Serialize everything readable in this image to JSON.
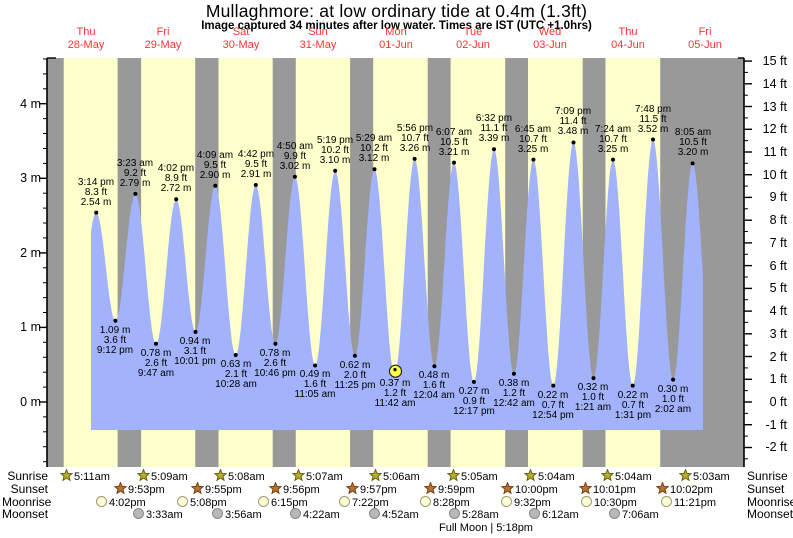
{
  "title": "Mullaghmore: at low  ordinary tide at 0.4m (1.3ft)",
  "subtitle": "Image captured 34 minutes after low water. Times are IST (UTC +1.0hrs)",
  "days": [
    {
      "name": "Thu",
      "date": "28-May"
    },
    {
      "name": "Fri",
      "date": "29-May"
    },
    {
      "name": "Sat",
      "date": "30-May"
    },
    {
      "name": "Sun",
      "date": "31-May"
    },
    {
      "name": "Mon",
      "date": "01-Jun"
    },
    {
      "name": "Tue",
      "date": "02-Jun"
    },
    {
      "name": "Wed",
      "date": "03-Jun"
    },
    {
      "name": "Thu",
      "date": "04-Jun"
    },
    {
      "name": "Fri",
      "date": "05-Jun"
    }
  ],
  "axes": {
    "left": {
      "unit": "m",
      "ticks": [
        0,
        1,
        2,
        3,
        4
      ]
    },
    "right": {
      "unit": "ft",
      "ticks": [
        -2,
        -1,
        0,
        1,
        2,
        3,
        4,
        5,
        6,
        7,
        8,
        9,
        10,
        11,
        12,
        13,
        14,
        15
      ]
    }
  },
  "chart_data": {
    "type": "area",
    "title": "Tide height curve",
    "ylabel_left": "metres",
    "ylabel_right": "feet",
    "ylim_m": [
      -0.87,
      4.6
    ],
    "ylim_ft": [
      -2,
      15
    ],
    "extremes": [
      {
        "kind": "high",
        "day": 0,
        "time": "3:14 pm",
        "ft": 8.3,
        "m": 2.54
      },
      {
        "kind": "low",
        "day": 0,
        "time": "9:12 pm",
        "ft": 3.6,
        "m": 1.09
      },
      {
        "kind": "high",
        "day": 1,
        "time": "3:23 am",
        "ft": 9.2,
        "m": 2.79
      },
      {
        "kind": "low",
        "day": 1,
        "time": "9:47 am",
        "ft": 2.6,
        "m": 0.78
      },
      {
        "kind": "high",
        "day": 1,
        "time": "4:02 pm",
        "ft": 8.9,
        "m": 2.72
      },
      {
        "kind": "low",
        "day": 1,
        "time": "10:01 pm",
        "ft": 3.1,
        "m": 0.94
      },
      {
        "kind": "high",
        "day": 2,
        "time": "4:09 am",
        "ft": 9.5,
        "m": 2.9
      },
      {
        "kind": "low",
        "day": 2,
        "time": "10:28 am",
        "ft": 2.1,
        "m": 0.63
      },
      {
        "kind": "high",
        "day": 2,
        "time": "4:42 pm",
        "ft": 9.5,
        "m": 2.91
      },
      {
        "kind": "low",
        "day": 2,
        "time": "10:46 pm",
        "ft": 2.6,
        "m": 0.78
      },
      {
        "kind": "high",
        "day": 3,
        "time": "4:50 am",
        "ft": 9.9,
        "m": 3.02
      },
      {
        "kind": "low",
        "day": 3,
        "time": "11:05 am",
        "ft": 1.6,
        "m": 0.49
      },
      {
        "kind": "high",
        "day": 3,
        "time": "5:19 pm",
        "ft": 10.2,
        "m": 3.1
      },
      {
        "kind": "low",
        "day": 3,
        "time": "11:25 pm",
        "ft": 2.0,
        "m": 0.62
      },
      {
        "kind": "high",
        "day": 4,
        "time": "5:29 am",
        "ft": 10.2,
        "m": 3.12
      },
      {
        "kind": "low",
        "day": 4,
        "time": "11:42 am",
        "ft": 1.2,
        "m": 0.37,
        "current": true
      },
      {
        "kind": "high",
        "day": 4,
        "time": "5:56 pm",
        "ft": 10.7,
        "m": 3.26
      },
      {
        "kind": "low",
        "day": 5,
        "time": "12:04 am",
        "ft": 1.6,
        "m": 0.48
      },
      {
        "kind": "high",
        "day": 5,
        "time": "6:07 am",
        "ft": 10.5,
        "m": 3.21
      },
      {
        "kind": "low",
        "day": 5,
        "time": "12:17 pm",
        "ft": 0.9,
        "m": 0.27
      },
      {
        "kind": "high",
        "day": 5,
        "time": "6:32 pm",
        "ft": 11.1,
        "m": 3.39
      },
      {
        "kind": "low",
        "day": 6,
        "time": "12:42 am",
        "ft": 1.2,
        "m": 0.38
      },
      {
        "kind": "high",
        "day": 6,
        "time": "6:45 am",
        "ft": 10.7,
        "m": 3.25
      },
      {
        "kind": "low",
        "day": 6,
        "time": "12:54 pm",
        "ft": 0.7,
        "m": 0.22
      },
      {
        "kind": "high",
        "day": 6,
        "time": "7:09 pm",
        "ft": 11.4,
        "m": 3.48
      },
      {
        "kind": "low",
        "day": 7,
        "time": "1:21 am",
        "ft": 1.0,
        "m": 0.32
      },
      {
        "kind": "high",
        "day": 7,
        "time": "7:24 am",
        "ft": 10.7,
        "m": 3.25
      },
      {
        "kind": "low",
        "day": 7,
        "time": "1:31 pm",
        "ft": 0.7,
        "m": 0.22
      },
      {
        "kind": "high",
        "day": 7,
        "time": "7:48 pm",
        "ft": 11.5,
        "m": 3.52
      },
      {
        "kind": "low",
        "day": 8,
        "time": "2:02 am",
        "ft": 1.0,
        "m": 0.3
      },
      {
        "kind": "high",
        "day": 8,
        "time": "8:05 am",
        "ft": 10.5,
        "m": 3.2
      }
    ]
  },
  "astro": {
    "row_labels": [
      "Sunrise",
      "Sunset",
      "Moonrise",
      "Moonset"
    ],
    "sunrise": [
      {
        "day": 0,
        "time": "5:11am"
      },
      {
        "day": 1,
        "time": "5:09am"
      },
      {
        "day": 2,
        "time": "5:08am"
      },
      {
        "day": 3,
        "time": "5:07am"
      },
      {
        "day": 4,
        "time": "5:06am"
      },
      {
        "day": 5,
        "time": "5:05am"
      },
      {
        "day": 6,
        "time": "5:04am"
      },
      {
        "day": 7,
        "time": "5:04am"
      },
      {
        "day": 8,
        "time": "5:03am"
      }
    ],
    "sunset": [
      {
        "day": 0,
        "time": "9:53pm"
      },
      {
        "day": 1,
        "time": "9:55pm"
      },
      {
        "day": 2,
        "time": "9:56pm"
      },
      {
        "day": 3,
        "time": "9:57pm"
      },
      {
        "day": 4,
        "time": "9:59pm"
      },
      {
        "day": 5,
        "time": "10:00pm"
      },
      {
        "day": 6,
        "time": "10:01pm"
      },
      {
        "day": 7,
        "time": "10:02pm"
      }
    ],
    "moonrise": [
      {
        "day": 0,
        "time": "4:02pm"
      },
      {
        "day": 1,
        "time": "5:08pm"
      },
      {
        "day": 2,
        "time": "6:15pm"
      },
      {
        "day": 3,
        "time": "7:22pm"
      },
      {
        "day": 4,
        "time": "8:28pm"
      },
      {
        "day": 5,
        "time": "9:32pm"
      },
      {
        "day": 6,
        "time": "10:30pm"
      },
      {
        "day": 7,
        "time": "11:21pm"
      }
    ],
    "moonset": [
      {
        "day": 1,
        "time": "3:33am"
      },
      {
        "day": 2,
        "time": "3:56am"
      },
      {
        "day": 3,
        "time": "4:22am"
      },
      {
        "day": 4,
        "time": "4:52am"
      },
      {
        "day": 5,
        "time": "5:28am"
      },
      {
        "day": 6,
        "time": "6:12am"
      },
      {
        "day": 7,
        "time": "7:06am"
      }
    ],
    "full_moon_text": "Full Moon | 5:18pm"
  },
  "colors": {
    "night_band": "#999999",
    "day_band": "#ffffcc",
    "tide_fill": "#a2b2fb",
    "day_label_red": "#ff3333",
    "axis": "#000000",
    "sunrise_star_fill": "#b9ae2f",
    "sunrise_star_stroke": "#66600a",
    "sunset_star_fill": "#b5742f",
    "sunset_star_stroke": "#7a3c10",
    "moonrise_fill": "#ffffd6",
    "moonrise_stroke": "#9a9a78",
    "moonset_fill": "#b8b8b8",
    "moonset_stroke": "#888888",
    "current_marker_fill": "#ffff44",
    "current_marker_stroke": "#222222"
  }
}
